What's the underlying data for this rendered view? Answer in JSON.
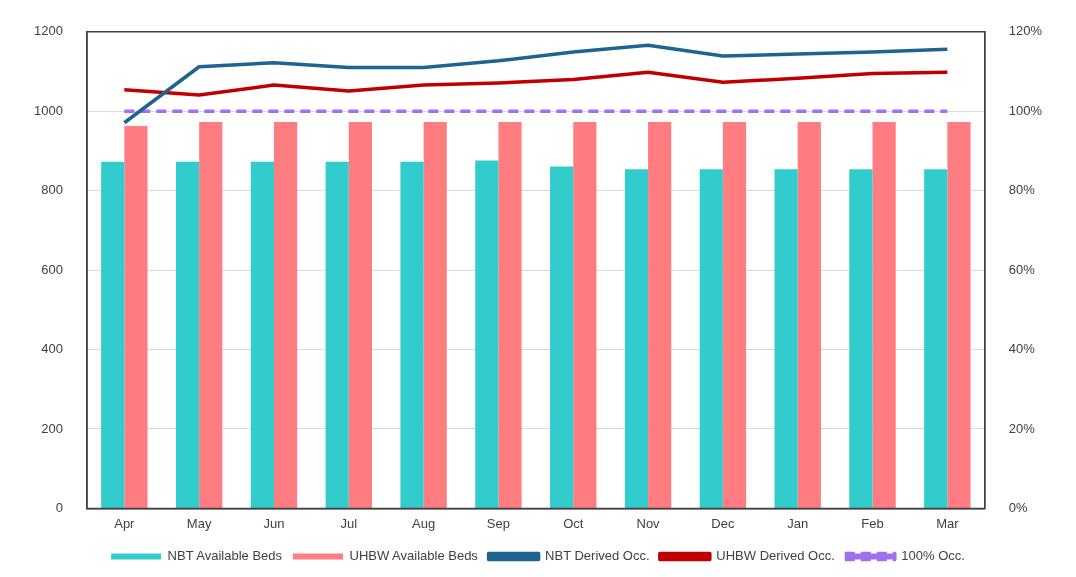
{
  "chart_data": {
    "type": "bar",
    "categories": [
      "Apr",
      "May",
      "Jun",
      "Jul",
      "Aug",
      "Sep",
      "Oct",
      "Nov",
      "Dec",
      "Jan",
      "Feb",
      "Mar"
    ],
    "series": [
      {
        "name": "NBT Available Beds",
        "color": "#33cccc",
        "values": [
          873,
          873,
          873,
          873,
          873,
          876,
          861,
          854,
          854,
          854,
          854,
          854
        ]
      },
      {
        "name": "UHBW Available Beds",
        "color": "#ff7c80",
        "values": [
          963,
          973,
          973,
          973,
          973,
          973,
          973,
          973,
          973,
          973,
          973,
          973
        ]
      },
      {
        "name": "NBT Derived Occ.",
        "type": "line",
        "axis": "y2",
        "color": "#1f6391",
        "line_style": "solid",
        "values": [
          97.1,
          111.2,
          112.2,
          111,
          111,
          112.7,
          114.9,
          116.6,
          113.9,
          114.4,
          114.9,
          115.6
        ]
      },
      {
        "name": "UHBW Derived Occ.",
        "type": "line",
        "axis": "y2",
        "color": "#c00000",
        "line_style": "solid",
        "values": [
          105.4,
          104.1,
          106.6,
          105.1,
          106.6,
          107.1,
          108,
          109.8,
          107.3,
          108.3,
          109.5,
          109.8
        ]
      },
      {
        "name": "100% Occ.",
        "type": "line",
        "axis": "y2",
        "color": "#a070f0",
        "line_style": "dashed",
        "values": [
          100,
          100,
          100,
          100,
          100,
          100,
          100,
          100,
          100,
          100,
          100,
          100
        ]
      }
    ],
    "ylim": [
      0,
      1200
    ],
    "yticks": [
      0,
      200,
      400,
      600,
      800,
      1000,
      1200
    ],
    "y2lim": [
      0,
      120
    ],
    "y2ticks": [
      {
        "value": 0,
        "label": "0%"
      },
      {
        "value": 20,
        "label": "20%"
      },
      {
        "value": 40,
        "label": "40%"
      },
      {
        "value": 60,
        "label": "60%"
      },
      {
        "value": 80,
        "label": "80%"
      },
      {
        "value": 100,
        "label": "100%"
      },
      {
        "value": 120,
        "label": "120%"
      }
    ],
    "grid": "y",
    "legend": "bottom",
    "marker": "none"
  }
}
